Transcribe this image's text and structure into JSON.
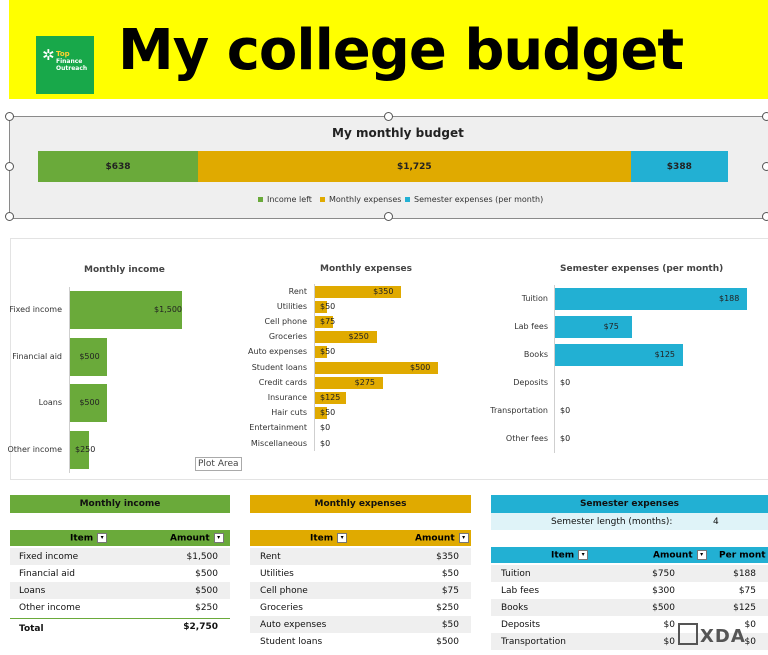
{
  "header": {
    "title": "My college budget",
    "logo_text": [
      "Top",
      "Finance",
      "Outreach"
    ]
  },
  "summary_chart": {
    "title": "My monthly budget",
    "segments": [
      {
        "name": "Income left",
        "value": 638,
        "label": "$638",
        "color": "#6aaa3a"
      },
      {
        "name": "Monthly expenses",
        "value": 1725,
        "label": "$1,725",
        "color": "#e0aa00"
      },
      {
        "name": "Semester expenses (per month)",
        "value": 388,
        "label": "$388",
        "color": "#22b0d3"
      }
    ]
  },
  "chart_data": [
    {
      "type": "bar",
      "title": "Monthly income",
      "categories": [
        "Fixed income",
        "Financial aid",
        "Loans",
        "Other income"
      ],
      "values": [
        1500,
        500,
        500,
        250
      ],
      "labels": [
        "$1,500",
        "$500",
        "$500",
        "$250"
      ],
      "color": "#6aaa3a"
    },
    {
      "type": "bar",
      "title": "Monthly expenses",
      "categories": [
        "Rent",
        "Utilities",
        "Cell phone",
        "Groceries",
        "Auto expenses",
        "Student loans",
        "Credit cards",
        "Insurance",
        "Hair cuts",
        "Entertainment",
        "Miscellaneous"
      ],
      "values": [
        350,
        50,
        75,
        250,
        50,
        500,
        275,
        125,
        50,
        0,
        0
      ],
      "labels": [
        "$350",
        "$50",
        "$75",
        "$250",
        "$50",
        "$500",
        "$275",
        "$125",
        "$50",
        "$0",
        "$0"
      ],
      "color": "#e0aa00"
    },
    {
      "type": "bar",
      "title": "Semester expenses (per month)",
      "categories": [
        "Tuition",
        "Lab fees",
        "Books",
        "Deposits",
        "Transportation",
        "Other fees"
      ],
      "values": [
        188,
        75,
        125,
        0,
        0,
        0
      ],
      "labels": [
        "$188",
        "$75",
        "$125",
        "$0",
        "$0",
        "$0"
      ],
      "color": "#22b0d3"
    }
  ],
  "tooltip": "Plot Area",
  "tables": {
    "income": {
      "title": "Monthly income",
      "col_item": "Item",
      "col_amount": "Amount",
      "rows": [
        [
          "Fixed income",
          "$1,500"
        ],
        [
          "Financial aid",
          "$500"
        ],
        [
          "Loans",
          "$500"
        ],
        [
          "Other income",
          "$250"
        ]
      ],
      "total_label": "Total",
      "total_value": "$2,750"
    },
    "expenses": {
      "title": "Monthly expenses",
      "col_item": "Item",
      "col_amount": "Amount",
      "rows": [
        [
          "Rent",
          "$350"
        ],
        [
          "Utilities",
          "$50"
        ],
        [
          "Cell phone",
          "$75"
        ],
        [
          "Groceries",
          "$250"
        ],
        [
          "Auto expenses",
          "$50"
        ],
        [
          "Student loans",
          "$500"
        ]
      ]
    },
    "semester": {
      "title": "Semester expenses",
      "length_label": "Semester length (months):",
      "length_value": "4",
      "col_item": "Item",
      "col_amount": "Amount",
      "col_per": "Per mont",
      "rows": [
        [
          "Tuition",
          "$750",
          "$188"
        ],
        [
          "Lab fees",
          "$300",
          "$75"
        ],
        [
          "Books",
          "$500",
          "$125"
        ],
        [
          "Deposits",
          "$0",
          "$0"
        ],
        [
          "Transportation",
          "$0",
          "$0"
        ]
      ]
    }
  },
  "watermark": "XDA"
}
